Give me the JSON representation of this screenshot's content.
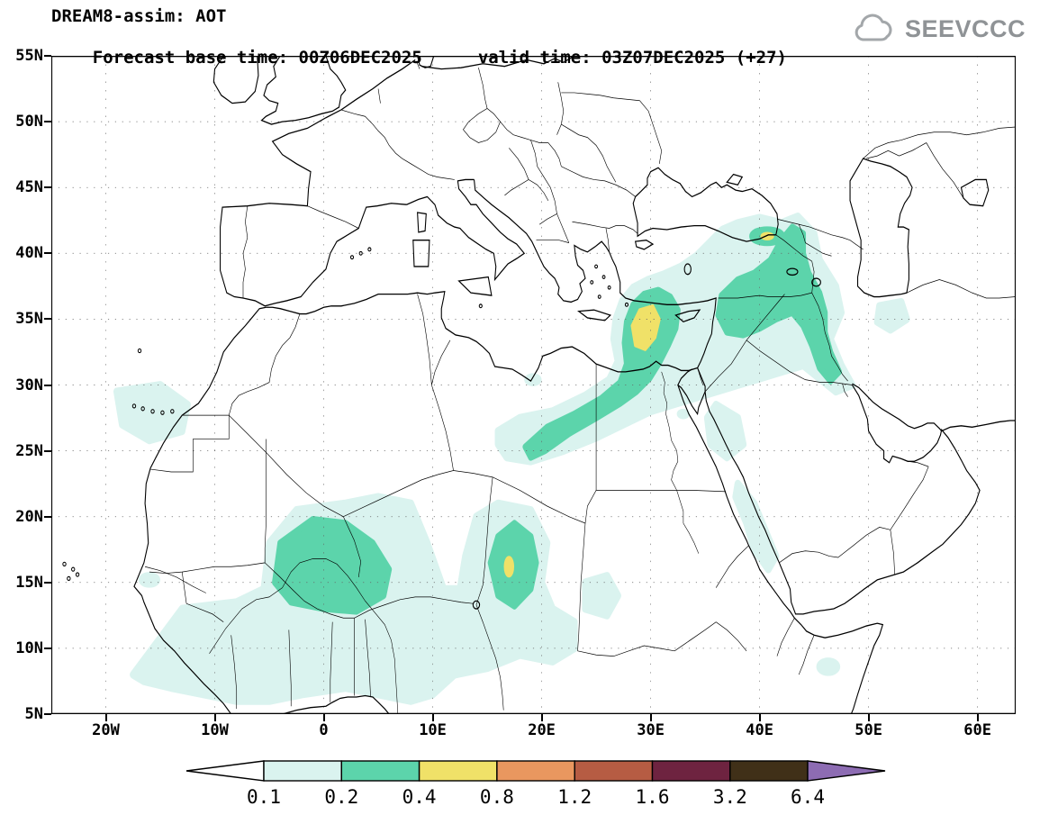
{
  "header": {
    "title": "DREAM8-assim: AOT",
    "base_time_label": "Forecast base time: 00Z06DEC2025",
    "valid_time_label": "valid time: 03Z07DEC2025 (+27)",
    "logo": {
      "text": "SEEVCCC",
      "icon": "cloud-icon",
      "color": "#8f9396"
    }
  },
  "map": {
    "lat_ticks": [
      "55N",
      "50N",
      "45N",
      "40N",
      "35N",
      "30N",
      "25N",
      "20N",
      "15N",
      "10N",
      "5N"
    ],
    "lon_ticks": [
      "20W",
      "10W",
      "0",
      "10E",
      "20E",
      "30E",
      "40E",
      "50E",
      "60E"
    ],
    "grid_style": "dotted"
  },
  "legend": {
    "values": [
      "0.1",
      "0.2",
      "0.4",
      "0.8",
      "1.2",
      "1.6",
      "3.2",
      "6.4"
    ],
    "colors": [
      "#ffffff",
      "#daf3ef",
      "#5cd4ab",
      "#f0e168",
      "#e9975f",
      "#b65c43",
      "#6e2340",
      "#403018",
      "#8d6cb3"
    ]
  },
  "chart_data": {
    "type": "heatmap",
    "title": "AOT filled contours (aerosol optical thickness)",
    "levels": [
      0.1,
      0.2,
      0.4,
      0.8,
      1.2,
      1.6,
      3.2,
      6.4
    ],
    "lat_range": [
      "5N",
      "55N"
    ],
    "lon_range": [
      "25W",
      "63E"
    ],
    "regions": [
      {
        "area": "West Africa / Sahel (Senegal to Nigeria)",
        "aot": "0.1-0.2 broad"
      },
      {
        "area": "Mali / Niger core",
        "aot": "0.2-0.4"
      },
      {
        "area": "Chad (Bodele) core",
        "aot": "0.2-0.4 with tiny 0.4-0.8 spot"
      },
      {
        "area": "NW Africa Atlantic coast near Canary Islands",
        "aot": "0.1-0.2"
      },
      {
        "area": "Egypt-Libya band toward E Mediterranean",
        "aot": "0.2-0.4"
      },
      {
        "area": "E Mediterranean south-west of Cyprus",
        "aot": "0.4-0.8"
      },
      {
        "area": "Syria / Iraq / E Turkey",
        "aot": "0.1-0.4"
      },
      {
        "area": "Armenia / Caucasus spot",
        "aot": "0.4-0.8 tiny core"
      },
      {
        "area": "Red Sea / SW Saudi coast",
        "aot": "0.1-0.2 patches"
      }
    ]
  }
}
